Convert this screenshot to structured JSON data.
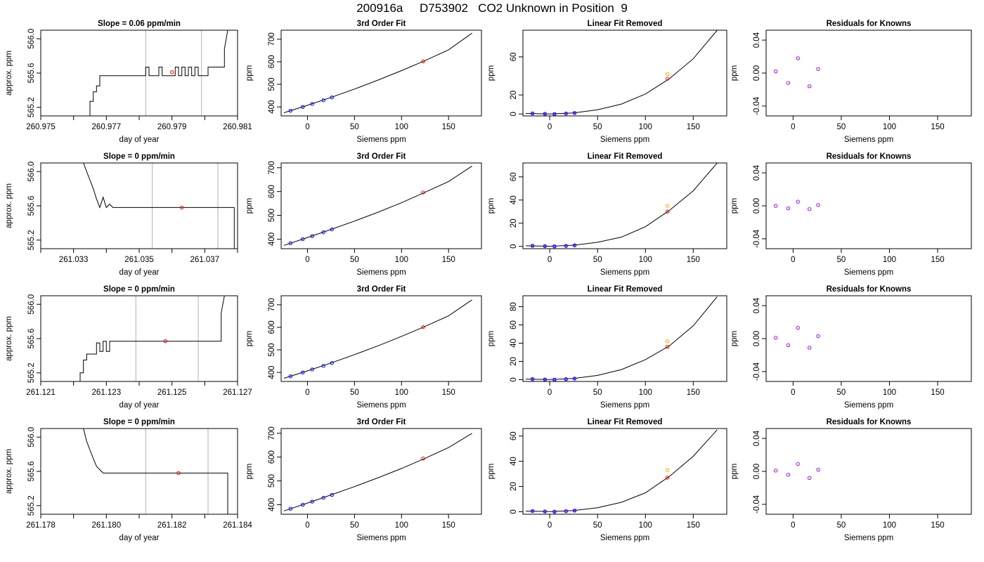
{
  "page": {
    "title": "200916a     D753902   CO2 Unknown in Position  9"
  },
  "colors": {
    "trace": "#000000",
    "frame": "#000000",
    "window": "#bebebe",
    "unknown_point": "#ff0000",
    "known_point": "#0000ff",
    "linear_unknown": "#ffa500",
    "residual_point": "#a020f0"
  },
  "chart_data": [
    {
      "type": "line",
      "row": 0,
      "col": 0,
      "title": "Slope =  0.06  ppm/min",
      "xlabel": "day of year",
      "ylabel": "approx. ppm",
      "xlim": [
        260.975,
        260.981
      ],
      "ylim": [
        565.1,
        566.1
      ],
      "xticks": [
        260.975,
        260.976,
        260.977,
        260.978,
        260.979,
        260.98,
        260.981
      ],
      "xtick_labels": [
        "260.975",
        "",
        "260.977",
        "",
        "260.979",
        "",
        "260.981"
      ],
      "yticks": [
        565.2,
        565.6,
        566.0
      ],
      "ytick_labels": [
        "565.2",
        "565.6",
        "566.0"
      ],
      "window": [
        260.9782,
        260.9799
      ],
      "series": [
        {
          "x": [
            260.9765,
            260.9765,
            260.9766,
            260.9766,
            260.9767,
            260.9767,
            260.9768,
            260.9768,
            260.9782,
            260.9782,
            260.9783,
            260.9783,
            260.9786,
            260.9786,
            260.9787,
            260.9787,
            260.9791,
            260.9791,
            260.9792,
            260.9792,
            260.9793,
            260.9793,
            260.9794,
            260.9794,
            260.9795,
            260.9795,
            260.9796,
            260.9796,
            260.9797,
            260.9797,
            260.9798,
            260.9798,
            260.9801,
            260.9801,
            260.9806,
            260.9806,
            260.9807
          ],
          "y": [
            565.1,
            565.27,
            565.27,
            565.38,
            565.38,
            565.45,
            565.45,
            565.57,
            565.57,
            565.67,
            565.67,
            565.57,
            565.57,
            565.67,
            565.67,
            565.57,
            565.57,
            565.67,
            565.67,
            565.57,
            565.57,
            565.67,
            565.67,
            565.57,
            565.57,
            565.67,
            565.67,
            565.57,
            565.57,
            565.67,
            565.67,
            565.57,
            565.57,
            565.67,
            565.67,
            565.88,
            566.1
          ]
        }
      ],
      "point": {
        "x": 260.979,
        "y": 565.61
      }
    },
    {
      "type": "line",
      "row": 1,
      "col": 0,
      "title": "Slope =  0  ppm/min",
      "xlabel": "day of year",
      "ylabel": "approx. ppm",
      "xlim": [
        261.032,
        261.038
      ],
      "ylim": [
        565.1,
        566.1
      ],
      "xticks": [
        261.032,
        261.033,
        261.034,
        261.035,
        261.036,
        261.037,
        261.038
      ],
      "xtick_labels": [
        "",
        "261.033",
        "",
        "261.035",
        "",
        "261.037",
        ""
      ],
      "yticks": [
        565.2,
        565.6,
        566.0
      ],
      "ytick_labels": [
        "565.2",
        "565.6",
        "566.0"
      ],
      "window": [
        261.0354,
        261.0374
      ],
      "series": [
        {
          "x": [
            261.0333,
            261.0334,
            261.0335,
            261.0336,
            261.0337,
            261.0338,
            261.0339,
            261.034,
            261.0341,
            261.0342,
            261.0379,
            261.0379
          ],
          "y": [
            566.1,
            566.0,
            565.9,
            565.8,
            565.68,
            565.58,
            565.7,
            565.58,
            565.62,
            565.58,
            565.58,
            565.1
          ]
        }
      ],
      "point": {
        "x": 261.0363,
        "y": 565.58
      }
    },
    {
      "type": "line",
      "row": 2,
      "col": 0,
      "title": "Slope =  0  ppm/min",
      "xlabel": "day of year",
      "ylabel": "approx. ppm",
      "xlim": [
        261.121,
        261.127
      ],
      "ylim": [
        565.1,
        566.1
      ],
      "xticks": [
        261.121,
        261.122,
        261.123,
        261.124,
        261.125,
        261.126,
        261.127
      ],
      "xtick_labels": [
        "261.121",
        "",
        "261.123",
        "",
        "261.125",
        "",
        "261.127"
      ],
      "yticks": [
        565.2,
        565.6,
        566.0
      ],
      "ytick_labels": [
        "565.2",
        "565.6",
        "566.0"
      ],
      "window": [
        261.1239,
        261.1258
      ],
      "series": [
        {
          "x": [
            261.1222,
            261.1222,
            261.1223,
            261.1223,
            261.1224,
            261.1224,
            261.1227,
            261.1227,
            261.1228,
            261.1228,
            261.1229,
            261.1229,
            261.123,
            261.123,
            261.1231,
            261.1231,
            261.1265,
            261.1265,
            261.1266
          ],
          "y": [
            565.1,
            565.2,
            565.2,
            565.35,
            565.35,
            565.42,
            565.42,
            565.55,
            565.55,
            565.45,
            565.45,
            565.57,
            565.57,
            565.45,
            565.45,
            565.57,
            565.57,
            565.9,
            566.1
          ]
        }
      ],
      "point": {
        "x": 261.1248,
        "y": 565.57
      }
    },
    {
      "type": "line",
      "row": 3,
      "col": 0,
      "title": "Slope =  0  ppm/min",
      "xlabel": "day of year",
      "ylabel": "approx. ppm",
      "xlim": [
        261.178,
        261.184
      ],
      "ylim": [
        565.1,
        566.1
      ],
      "xticks": [
        261.178,
        261.179,
        261.18,
        261.181,
        261.182,
        261.183,
        261.184
      ],
      "xtick_labels": [
        "261.178",
        "",
        "261.180",
        "",
        "261.182",
        "",
        "261.184"
      ],
      "yticks": [
        565.2,
        565.6,
        566.0
      ],
      "ytick_labels": [
        "565.2",
        "565.6",
        "566.0"
      ],
      "window": [
        261.1812,
        261.1831
      ],
      "series": [
        {
          "x": [
            261.1793,
            261.1794,
            261.1795,
            261.1796,
            261.1797,
            261.1798,
            261.1799,
            261.1837,
            261.1837
          ],
          "y": [
            566.1,
            565.95,
            565.85,
            565.75,
            565.66,
            565.62,
            565.58,
            565.58,
            565.1
          ]
        }
      ],
      "point": {
        "x": 261.1822,
        "y": 565.58
      }
    },
    {
      "type": "scatter",
      "row": 0,
      "col": 1,
      "title": "3rd Order Fit",
      "xlabel": "Siemens ppm",
      "ylabel": "ppm",
      "xlim": [
        -28,
        185
      ],
      "ylim": [
        360,
        740
      ],
      "xticks": [
        0,
        50,
        100,
        150
      ],
      "yticks": [
        400,
        500,
        600,
        700
      ],
      "curve": {
        "x": [
          -25,
          0,
          25,
          50,
          75,
          100,
          125,
          150,
          175
        ],
        "y": [
          374,
          407,
          442,
          479,
          519,
          561,
          605,
          653,
          727
        ]
      },
      "known": {
        "x": [
          -18,
          -5,
          5,
          17,
          26
        ],
        "y": [
          383,
          400,
          413,
          429,
          442
        ]
      },
      "unknown": {
        "x": [
          123
        ],
        "y": [
          602
        ]
      }
    },
    {
      "type": "scatter",
      "row": 1,
      "col": 1,
      "title": "3rd Order Fit",
      "xlabel": "Siemens ppm",
      "ylabel": "ppm",
      "xlim": [
        -28,
        185
      ],
      "ylim": [
        360,
        720
      ],
      "xticks": [
        0,
        50,
        100,
        150
      ],
      "yticks": [
        400,
        500,
        600,
        700
      ],
      "curve": {
        "x": [
          -25,
          0,
          25,
          50,
          75,
          100,
          125,
          150,
          175
        ],
        "y": [
          374,
          407,
          441,
          476,
          513,
          553,
          597,
          642,
          707
        ]
      },
      "known": {
        "x": [
          -18,
          -5,
          5,
          17,
          26
        ],
        "y": [
          383,
          400,
          413,
          429,
          441
        ]
      },
      "unknown": {
        "x": [
          123
        ],
        "y": [
          596
        ]
      }
    },
    {
      "type": "scatter",
      "row": 2,
      "col": 1,
      "title": "3rd Order Fit",
      "xlabel": "Siemens ppm",
      "ylabel": "ppm",
      "xlim": [
        -28,
        185
      ],
      "ylim": [
        360,
        740
      ],
      "xticks": [
        0,
        50,
        100,
        150
      ],
      "yticks": [
        400,
        500,
        600,
        700
      ],
      "curve": {
        "x": [
          -25,
          0,
          25,
          50,
          75,
          100,
          125,
          150,
          175
        ],
        "y": [
          374,
          407,
          442,
          479,
          518,
          560,
          604,
          651,
          722
        ]
      },
      "known": {
        "x": [
          -18,
          -5,
          5,
          17,
          26
        ],
        "y": [
          383,
          400,
          413,
          429,
          442
        ]
      },
      "unknown": {
        "x": [
          123
        ],
        "y": [
          601
        ]
      }
    },
    {
      "type": "scatter",
      "row": 3,
      "col": 1,
      "title": "3rd Order Fit",
      "xlabel": "Siemens ppm",
      "ylabel": "ppm",
      "xlim": [
        -28,
        185
      ],
      "ylim": [
        360,
        720
      ],
      "xticks": [
        0,
        50,
        100,
        150
      ],
      "yticks": [
        400,
        500,
        600,
        700
      ],
      "curve": {
        "x": [
          -25,
          0,
          25,
          50,
          75,
          100,
          125,
          150,
          175
        ],
        "y": [
          374,
          407,
          441,
          476,
          513,
          552,
          595,
          640,
          700
        ]
      },
      "known": {
        "x": [
          -18,
          -5,
          5,
          17,
          26
        ],
        "y": [
          383,
          400,
          413,
          429,
          441
        ]
      },
      "unknown": {
        "x": [
          123
        ],
        "y": [
          594
        ]
      }
    },
    {
      "type": "scatter",
      "row": 0,
      "col": 2,
      "title": "Linear Fit Removed",
      "xlabel": "Siemens ppm",
      "ylabel": "ppm",
      "xlim": [
        -28,
        185
      ],
      "ylim": [
        -2,
        88
      ],
      "xticks": [
        0,
        50,
        100,
        150
      ],
      "yticks": [
        0,
        20,
        60
      ],
      "curve": {
        "x": [
          -25,
          0,
          25,
          50,
          75,
          100,
          125,
          150,
          175
        ],
        "y": [
          0.6,
          0.1,
          1.2,
          4.5,
          10.5,
          21,
          37,
          58,
          88
        ]
      },
      "known": {
        "x": [
          -18,
          -5,
          5,
          17,
          26
        ],
        "y": [
          0.6,
          0.2,
          0.0,
          0.5,
          1.1
        ]
      },
      "unknown": {
        "x": [
          123
        ],
        "y": [
          37
        ]
      },
      "linear": {
        "x": [
          123
        ],
        "y": [
          42
        ]
      }
    },
    {
      "type": "scatter",
      "row": 1,
      "col": 2,
      "title": "Linear Fit Removed",
      "xlabel": "Siemens ppm",
      "ylabel": "ppm",
      "xlim": [
        -28,
        185
      ],
      "ylim": [
        -2,
        72
      ],
      "xticks": [
        0,
        50,
        100,
        150
      ],
      "yticks": [
        0,
        20,
        40,
        60
      ],
      "curve": {
        "x": [
          -25,
          0,
          25,
          50,
          75,
          100,
          125,
          150,
          175
        ],
        "y": [
          0.5,
          0.1,
          1.0,
          3.5,
          8,
          17,
          31,
          48,
          72
        ]
      },
      "known": {
        "x": [
          -18,
          -5,
          5,
          17,
          26
        ],
        "y": [
          0.5,
          0.2,
          0.0,
          0.4,
          0.9
        ]
      },
      "unknown": {
        "x": [
          123
        ],
        "y": [
          30
        ]
      },
      "linear": {
        "x": [
          123
        ],
        "y": [
          35
        ]
      }
    },
    {
      "type": "scatter",
      "row": 2,
      "col": 2,
      "title": "Linear Fit Removed",
      "xlabel": "Siemens ppm",
      "ylabel": "ppm",
      "xlim": [
        -28,
        185
      ],
      "ylim": [
        -2,
        92
      ],
      "xticks": [
        0,
        50,
        100,
        150
      ],
      "yticks": [
        0,
        20,
        40,
        60,
        80
      ],
      "curve": {
        "x": [
          -25,
          0,
          25,
          50,
          75,
          100,
          125,
          150,
          175
        ],
        "y": [
          0.6,
          0.1,
          1.2,
          4.6,
          11,
          22,
          37,
          59,
          91
        ]
      },
      "known": {
        "x": [
          -18,
          -5,
          5,
          17,
          26
        ],
        "y": [
          0.6,
          0.2,
          0.0,
          0.5,
          1.1
        ]
      },
      "unknown": {
        "x": [
          123
        ],
        "y": [
          36
        ]
      },
      "linear": {
        "x": [
          123
        ],
        "y": [
          42
        ]
      }
    },
    {
      "type": "scatter",
      "row": 3,
      "col": 2,
      "title": "Linear Fit Removed",
      "xlabel": "Siemens ppm",
      "ylabel": "ppm",
      "xlim": [
        -28,
        185
      ],
      "ylim": [
        -2,
        66
      ],
      "xticks": [
        0,
        50,
        100,
        150
      ],
      "yticks": [
        0,
        20,
        40,
        60
      ],
      "curve": {
        "x": [
          -25,
          0,
          25,
          50,
          75,
          100,
          125,
          150,
          175
        ],
        "y": [
          0.5,
          0.1,
          0.9,
          3.2,
          7.5,
          15,
          28,
          44,
          65
        ]
      },
      "known": {
        "x": [
          -18,
          -5,
          5,
          17,
          26
        ],
        "y": [
          0.5,
          0.2,
          0.0,
          0.4,
          0.9
        ]
      },
      "unknown": {
        "x": [
          123
        ],
        "y": [
          27
        ]
      },
      "linear": {
        "x": [
          123
        ],
        "y": [
          33
        ]
      }
    },
    {
      "type": "scatter",
      "row": 0,
      "col": 3,
      "title": "Residuals for Knowns",
      "xlabel": "Siemens ppm",
      "ylabel": "ppm",
      "xlim": [
        -28,
        185
      ],
      "ylim": [
        -0.052,
        0.052
      ],
      "xticks": [
        0,
        50,
        100,
        150
      ],
      "yticks": [
        -0.04,
        0.0,
        0.04
      ],
      "ytick_labels": [
        "-0.04",
        "0.00",
        "0.04"
      ],
      "points": {
        "x": [
          -18,
          -5,
          5,
          17,
          26
        ],
        "y": [
          0.002,
          -0.012,
          0.018,
          -0.016,
          0.005
        ]
      }
    },
    {
      "type": "scatter",
      "row": 1,
      "col": 3,
      "title": "Residuals for Knowns",
      "xlabel": "Siemens ppm",
      "ylabel": "ppm",
      "xlim": [
        -28,
        185
      ],
      "ylim": [
        -0.052,
        0.052
      ],
      "xticks": [
        0,
        50,
        100,
        150
      ],
      "yticks": [
        -0.04,
        0.0,
        0.04
      ],
      "ytick_labels": [
        "-0.04",
        "0.00",
        "0.04"
      ],
      "points": {
        "x": [
          -18,
          -5,
          5,
          17,
          26
        ],
        "y": [
          0.0,
          -0.003,
          0.005,
          -0.004,
          0.001
        ]
      }
    },
    {
      "type": "scatter",
      "row": 2,
      "col": 3,
      "title": "Residuals for Knowns",
      "xlabel": "Siemens ppm",
      "ylabel": "ppm",
      "xlim": [
        -28,
        185
      ],
      "ylim": [
        -0.052,
        0.052
      ],
      "xticks": [
        0,
        50,
        100,
        150
      ],
      "yticks": [
        -0.04,
        0.0,
        0.04
      ],
      "ytick_labels": [
        "-0.04",
        "0.00",
        "0.04"
      ],
      "points": {
        "x": [
          -18,
          -5,
          5,
          17,
          26
        ],
        "y": [
          0.001,
          -0.008,
          0.013,
          -0.011,
          0.003
        ]
      }
    },
    {
      "type": "scatter",
      "row": 3,
      "col": 3,
      "title": "Residuals for Knowns",
      "xlabel": "Siemens ppm",
      "ylabel": "ppm",
      "xlim": [
        -28,
        185
      ],
      "ylim": [
        -0.052,
        0.052
      ],
      "xticks": [
        0,
        50,
        100,
        150
      ],
      "yticks": [
        -0.04,
        0.0,
        0.04
      ],
      "ytick_labels": [
        "-0.04",
        "0.00",
        "0.04"
      ],
      "points": {
        "x": [
          -18,
          -5,
          5,
          17,
          26
        ],
        "y": [
          0.001,
          -0.004,
          0.009,
          -0.008,
          0.002
        ]
      }
    }
  ]
}
